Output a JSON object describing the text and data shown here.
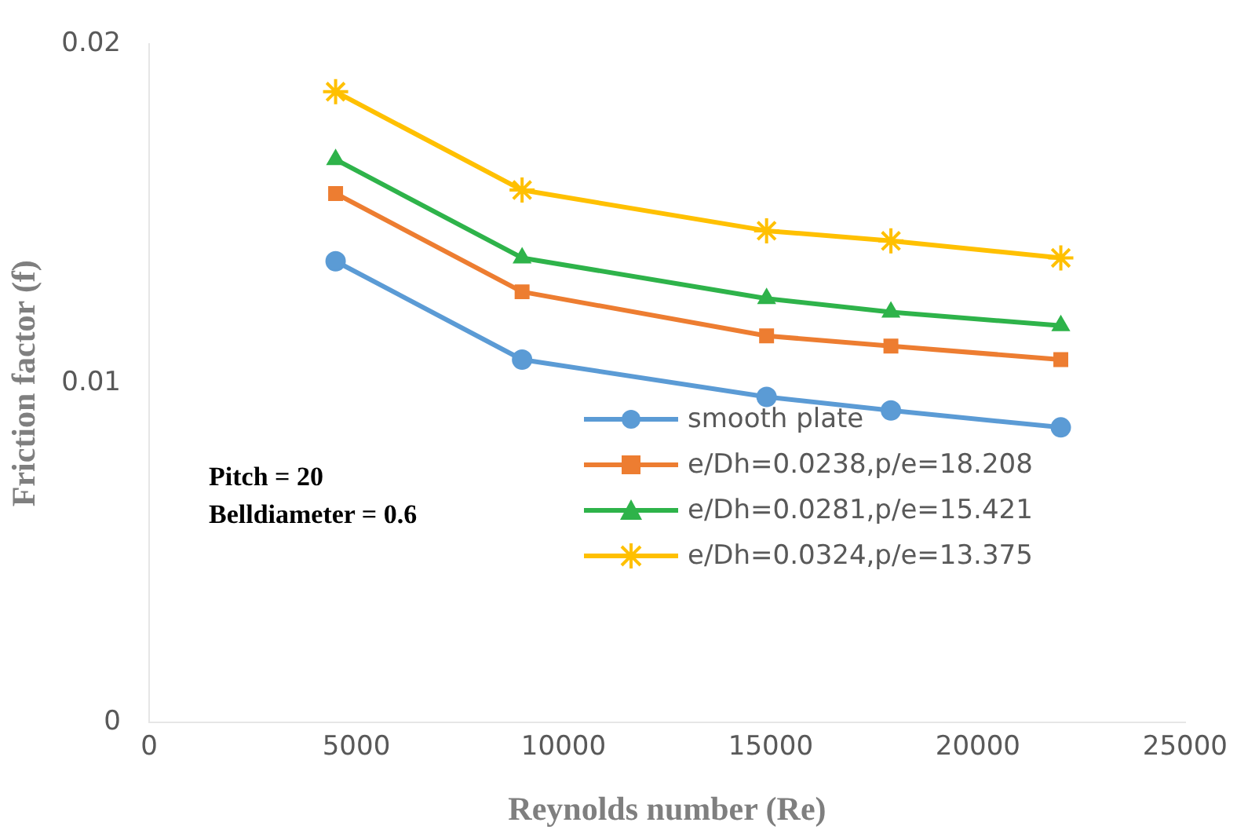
{
  "chart_data": {
    "type": "line",
    "xlabel": "Reynolds number (Re)",
    "ylabel": "Friction factor (f)",
    "x": [
      4500,
      9000,
      14900,
      17900,
      22000
    ],
    "series": [
      {
        "name": "smooth plate",
        "color": "#5b9bd5",
        "marker": "circle",
        "values": [
          0.0136,
          0.0107,
          0.0096,
          0.0092,
          0.0087
        ]
      },
      {
        "name": "e/Dh=0.0238,p/e=18.208",
        "color": "#ed7d31",
        "marker": "square",
        "values": [
          0.0156,
          0.0127,
          0.0114,
          0.0111,
          0.0107
        ]
      },
      {
        "name": "e/Dh=0.0281,p/e=15.421",
        "color": "#2eb34a",
        "marker": "triangle",
        "values": [
          0.0166,
          0.0137,
          0.0125,
          0.0121,
          0.0117
        ]
      },
      {
        "name": "e/Dh=0.0324,p/e=13.375",
        "color": "#ffc000",
        "marker": "cross",
        "values": [
          0.0186,
          0.0157,
          0.0145,
          0.0142,
          0.0137
        ]
      }
    ],
    "xlim": [
      0,
      25000
    ],
    "xticks": [
      0,
      5000,
      10000,
      15000,
      20000,
      25000
    ],
    "ylim": [
      0,
      0.02
    ],
    "yticks": [
      0,
      0.01,
      0.02
    ],
    "grid": false,
    "legend": "right",
    "annotations": [
      "Pitch = 20",
      "Belldiameter = 0.6"
    ]
  }
}
